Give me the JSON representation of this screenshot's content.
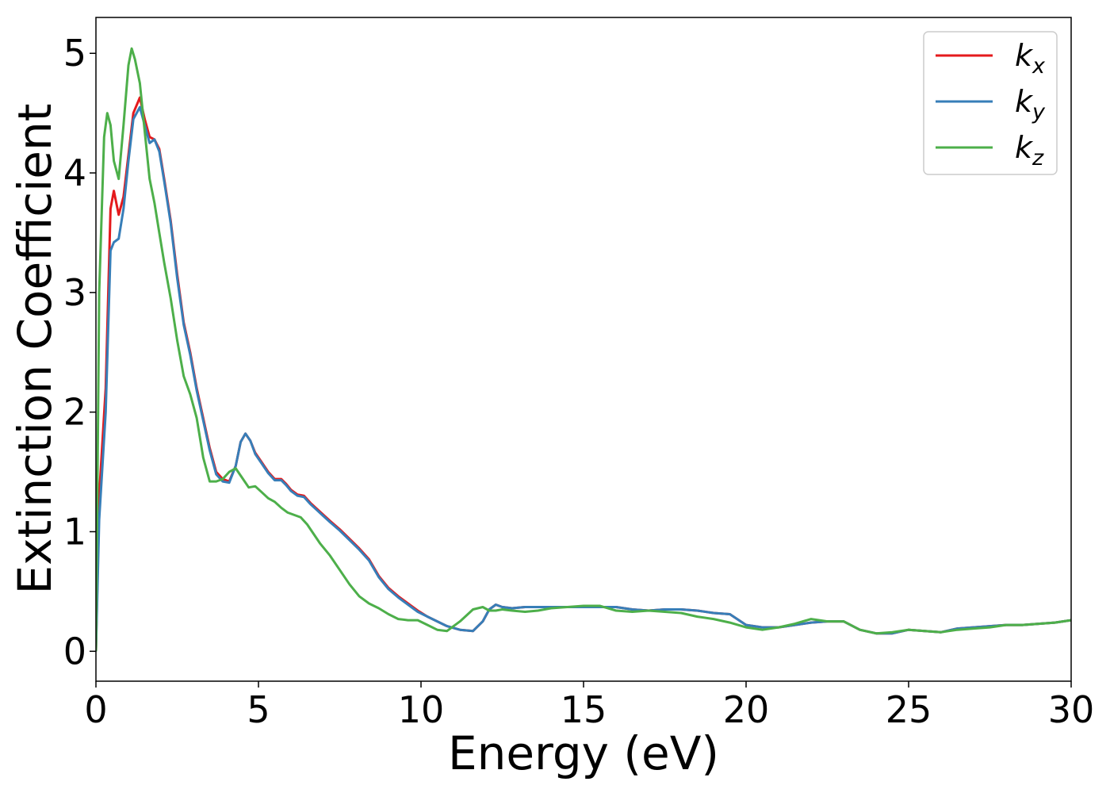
{
  "chart_data": {
    "type": "line",
    "title": "",
    "xlabel": "Energy (eV)",
    "ylabel": "Extinction Coefficient",
    "xlim": [
      0,
      30
    ],
    "ylim": [
      -0.25,
      5.3
    ],
    "xticks": [
      0,
      5,
      10,
      15,
      20,
      25,
      30
    ],
    "yticks": [
      0,
      1,
      2,
      3,
      4,
      5
    ],
    "grid": false,
    "legend_position": "top-right",
    "series": [
      {
        "name": "k_x",
        "label_base": "k",
        "label_sub": "x",
        "color": "#e41a1c",
        "x": [
          0,
          0.1,
          0.3,
          0.45,
          0.55,
          0.7,
          0.85,
          1.0,
          1.15,
          1.35,
          1.5,
          1.65,
          1.8,
          1.95,
          2.1,
          2.3,
          2.5,
          2.7,
          2.9,
          3.1,
          3.3,
          3.5,
          3.7,
          3.9,
          4.1,
          4.3,
          4.45,
          4.6,
          4.75,
          4.9,
          5.1,
          5.3,
          5.5,
          5.7,
          5.85,
          6.0,
          6.2,
          6.4,
          6.6,
          6.8,
          7.0,
          7.2,
          7.5,
          7.8,
          8.1,
          8.4,
          8.7,
          9.0,
          9.3,
          9.6,
          9.9,
          10.2,
          10.5,
          10.8,
          11.2,
          11.6,
          11.9,
          12.1,
          12.3,
          12.5,
          12.8,
          13.2,
          13.6,
          14.0,
          14.5,
          15.0,
          15.5,
          16.0,
          16.5,
          17.0,
          17.5,
          18.0,
          18.5,
          19.0,
          19.5,
          20.0,
          20.5,
          21.0,
          21.5,
          22.0,
          22.5,
          23.0,
          23.5,
          24.0,
          24.5,
          25.0,
          25.5,
          26.0,
          26.5,
          27.0,
          27.5,
          28.0,
          28.5,
          29.0,
          29.5,
          30.0
        ],
        "y": [
          0.0,
          1.3,
          2.2,
          3.7,
          3.85,
          3.65,
          3.8,
          4.15,
          4.5,
          4.63,
          4.45,
          4.3,
          4.28,
          4.2,
          3.95,
          3.6,
          3.15,
          2.75,
          2.5,
          2.2,
          1.95,
          1.7,
          1.5,
          1.44,
          1.42,
          1.55,
          1.75,
          1.82,
          1.76,
          1.66,
          1.58,
          1.5,
          1.44,
          1.44,
          1.4,
          1.35,
          1.31,
          1.3,
          1.24,
          1.19,
          1.14,
          1.09,
          1.02,
          0.94,
          0.86,
          0.77,
          0.63,
          0.53,
          0.46,
          0.4,
          0.34,
          0.29,
          0.25,
          0.21,
          0.18,
          0.17,
          0.25,
          0.35,
          0.39,
          0.37,
          0.36,
          0.37,
          0.37,
          0.37,
          0.37,
          0.37,
          0.37,
          0.37,
          0.35,
          0.34,
          0.35,
          0.35,
          0.34,
          0.32,
          0.31,
          0.22,
          0.2,
          0.2,
          0.22,
          0.24,
          0.25,
          0.25,
          0.18,
          0.15,
          0.15,
          0.18,
          0.17,
          0.16,
          0.19,
          0.2,
          0.21,
          0.22,
          0.22,
          0.23,
          0.24,
          0.26
        ]
      },
      {
        "name": "k_y",
        "label_base": "k",
        "label_sub": "y",
        "color": "#377eb8",
        "x": [
          0,
          0.1,
          0.3,
          0.45,
          0.55,
          0.7,
          0.85,
          1.0,
          1.15,
          1.35,
          1.5,
          1.65,
          1.8,
          1.95,
          2.1,
          2.3,
          2.5,
          2.7,
          2.9,
          3.1,
          3.3,
          3.5,
          3.7,
          3.9,
          4.1,
          4.3,
          4.45,
          4.6,
          4.75,
          4.9,
          5.1,
          5.3,
          5.5,
          5.7,
          5.85,
          6.0,
          6.2,
          6.4,
          6.6,
          6.8,
          7.0,
          7.2,
          7.5,
          7.8,
          8.1,
          8.4,
          8.7,
          9.0,
          9.3,
          9.6,
          9.9,
          10.2,
          10.5,
          10.8,
          11.2,
          11.6,
          11.9,
          12.1,
          12.3,
          12.5,
          12.8,
          13.2,
          13.6,
          14.0,
          14.5,
          15.0,
          15.5,
          16.0,
          16.5,
          17.0,
          17.5,
          18.0,
          18.5,
          19.0,
          19.5,
          20.0,
          20.5,
          21.0,
          21.5,
          22.0,
          22.5,
          23.0,
          23.5,
          24.0,
          24.5,
          25.0,
          25.5,
          26.0,
          26.5,
          27.0,
          27.5,
          28.0,
          28.5,
          29.0,
          29.5,
          30.0
        ],
        "y": [
          0.0,
          1.1,
          2.0,
          3.35,
          3.42,
          3.45,
          3.7,
          4.1,
          4.45,
          4.55,
          4.4,
          4.25,
          4.28,
          4.18,
          3.93,
          3.58,
          3.12,
          2.73,
          2.48,
          2.18,
          1.93,
          1.68,
          1.48,
          1.42,
          1.41,
          1.55,
          1.75,
          1.82,
          1.76,
          1.65,
          1.57,
          1.49,
          1.43,
          1.43,
          1.39,
          1.34,
          1.3,
          1.29,
          1.23,
          1.18,
          1.13,
          1.08,
          1.01,
          0.93,
          0.85,
          0.76,
          0.62,
          0.52,
          0.45,
          0.39,
          0.33,
          0.29,
          0.25,
          0.21,
          0.18,
          0.17,
          0.25,
          0.35,
          0.39,
          0.37,
          0.36,
          0.37,
          0.37,
          0.37,
          0.37,
          0.37,
          0.37,
          0.37,
          0.35,
          0.34,
          0.35,
          0.35,
          0.34,
          0.32,
          0.31,
          0.22,
          0.2,
          0.2,
          0.22,
          0.24,
          0.25,
          0.25,
          0.18,
          0.15,
          0.15,
          0.18,
          0.17,
          0.16,
          0.19,
          0.2,
          0.21,
          0.22,
          0.22,
          0.23,
          0.24,
          0.26
        ]
      },
      {
        "name": "k_z",
        "label_base": "k",
        "label_sub": "z",
        "color": "#4daf4a",
        "x": [
          0,
          0.1,
          0.25,
          0.35,
          0.45,
          0.55,
          0.7,
          0.85,
          1.0,
          1.1,
          1.2,
          1.35,
          1.5,
          1.65,
          1.8,
          1.95,
          2.1,
          2.3,
          2.5,
          2.7,
          2.9,
          3.1,
          3.3,
          3.5,
          3.7,
          3.9,
          4.1,
          4.3,
          4.5,
          4.7,
          4.9,
          5.1,
          5.3,
          5.5,
          5.7,
          5.9,
          6.1,
          6.3,
          6.5,
          6.7,
          6.9,
          7.2,
          7.5,
          7.8,
          8.1,
          8.4,
          8.7,
          9.0,
          9.3,
          9.6,
          9.9,
          10.2,
          10.5,
          10.8,
          11.2,
          11.6,
          11.9,
          12.1,
          12.3,
          12.5,
          12.8,
          13.2,
          13.6,
          14.0,
          14.5,
          15.0,
          15.5,
          16.0,
          16.5,
          17.0,
          17.5,
          18.0,
          18.5,
          19.0,
          19.5,
          20.0,
          20.5,
          21.0,
          21.5,
          22.0,
          22.5,
          23.0,
          23.5,
          24.0,
          24.5,
          25.0,
          25.5,
          26.0,
          26.5,
          27.0,
          27.5,
          28.0,
          28.5,
          29.0,
          29.5,
          30.0
        ],
        "y": [
          0.0,
          3.0,
          4.3,
          4.5,
          4.4,
          4.1,
          3.95,
          4.4,
          4.9,
          5.04,
          4.95,
          4.75,
          4.35,
          3.95,
          3.75,
          3.5,
          3.25,
          2.95,
          2.6,
          2.3,
          2.15,
          1.95,
          1.62,
          1.42,
          1.42,
          1.44,
          1.5,
          1.53,
          1.45,
          1.37,
          1.38,
          1.33,
          1.28,
          1.25,
          1.2,
          1.16,
          1.14,
          1.12,
          1.06,
          0.98,
          0.9,
          0.8,
          0.68,
          0.56,
          0.46,
          0.4,
          0.36,
          0.31,
          0.27,
          0.26,
          0.26,
          0.22,
          0.18,
          0.17,
          0.25,
          0.35,
          0.37,
          0.34,
          0.34,
          0.35,
          0.34,
          0.33,
          0.34,
          0.36,
          0.37,
          0.38,
          0.38,
          0.34,
          0.33,
          0.34,
          0.33,
          0.32,
          0.29,
          0.27,
          0.24,
          0.2,
          0.18,
          0.2,
          0.23,
          0.27,
          0.25,
          0.25,
          0.18,
          0.15,
          0.16,
          0.18,
          0.17,
          0.16,
          0.18,
          0.19,
          0.2,
          0.22,
          0.22,
          0.23,
          0.24,
          0.26
        ]
      }
    ]
  }
}
